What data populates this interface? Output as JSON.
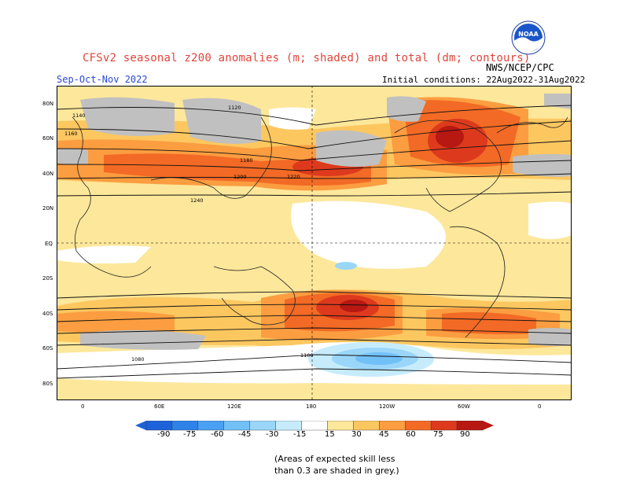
{
  "header": {
    "title": "CFSv2 seasonal z200 anomalies (m; shaded) and total (dm; contours)",
    "agency": "NWS/NCEP/CPC",
    "season": "Sep-Oct-Nov 2022",
    "initial_conditions": "Initial conditions: 22Aug2022-31Aug2022"
  },
  "logo": {
    "text": "NOAA",
    "icon": "noaa-logo-icon"
  },
  "map": {
    "lat_labels": [
      "80N",
      "60N",
      "40N",
      "20N",
      "EQ",
      "20S",
      "40S",
      "60S",
      "80S"
    ],
    "lon_labels": [
      "0",
      "60E",
      "120E",
      "180",
      "120W",
      "60W",
      "0"
    ],
    "contour_labels": [
      "1120",
      "1140",
      "1160",
      "1180",
      "1200",
      "1220",
      "1240",
      "1080",
      "1100"
    ],
    "skill_mask_color": "#c0c0c0"
  },
  "colorbar": {
    "levels": [
      "-90",
      "-75",
      "-60",
      "-45",
      "-30",
      "-15",
      "15",
      "30",
      "45",
      "60",
      "75",
      "90"
    ],
    "colors": [
      "#1d62d9",
      "#2e82e8",
      "#4aa0f2",
      "#72c0f8",
      "#9ad6fa",
      "#c6ecfc",
      "#ffffff",
      "#fde79a",
      "#fdc760",
      "#fb9d40",
      "#f26a25",
      "#dd3a1d",
      "#b81812"
    ]
  },
  "note": {
    "line1": "(Areas of expected skill less",
    "line2": "than 0.3 are shaded in grey.)"
  }
}
